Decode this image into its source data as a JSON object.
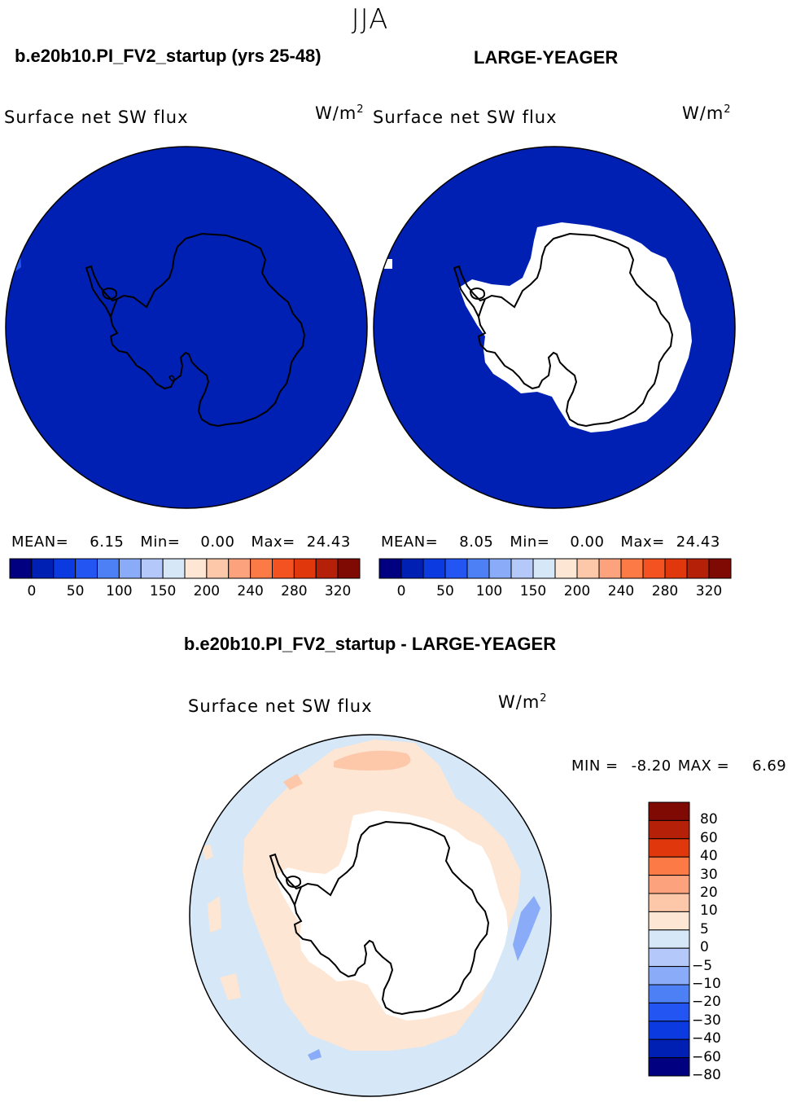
{
  "season": "JJA",
  "panels": [
    {
      "title": "b.e20b10.PI_FV2_startup (yrs 25-48)",
      "variable": "Surface net SW flux",
      "units": "W/m",
      "units_exponent": "2",
      "mean_label": "MEAN=",
      "mean": "6.15",
      "min_label": "Min=",
      "min": "0.00",
      "max_label": "Max=",
      "max": "24.43"
    },
    {
      "title": "LARGE-YEAGER",
      "variable": "Surface net SW flux",
      "units": "W/m",
      "units_exponent": "2",
      "mean_label": "MEAN=",
      "mean": "8.05",
      "min_label": "Min=",
      "min": "0.00",
      "max_label": "Max=",
      "max": "24.43"
    }
  ],
  "panel_colorbar": {
    "colors": [
      "#000080",
      "#0020b4",
      "#0a3ae0",
      "#2255f2",
      "#4d7ff5",
      "#8aacf8",
      "#b4c9f9",
      "#d6e7f7",
      "#fde6d4",
      "#fdc8aa",
      "#fca27d",
      "#fc7a45",
      "#f55222",
      "#e0380c",
      "#b52008",
      "#7f0a03"
    ],
    "ticks": [
      "0",
      "50",
      "100",
      "150",
      "200",
      "240",
      "280",
      "320"
    ]
  },
  "diff_panel": {
    "title": "b.e20b10.PI_FV2_startup - LARGE-YEAGER",
    "variable": "Surface net SW flux",
    "units": "W/m",
    "units_exponent": "2",
    "min_label": "MIN =",
    "min": "-8.20",
    "max_label": "MAX =",
    "max": "6.69",
    "colorbar": {
      "colors": [
        "#7f0a03",
        "#b52008",
        "#e0380c",
        "#fc7a45",
        "#fca27d",
        "#fdc8aa",
        "#fde6d4",
        "#d6e7f7",
        "#b4c9f9",
        "#8aacf8",
        "#4d7ff5",
        "#2255f2",
        "#0a3ae0",
        "#0020b4",
        "#000080"
      ],
      "ticks": [
        "80",
        "60",
        "40",
        "30",
        "20",
        "10",
        "5",
        "0",
        "−5",
        "−10",
        "−20",
        "−30",
        "−40",
        "−60",
        "−80"
      ]
    }
  },
  "map_colors": {
    "ocean_deep": "#0020b4",
    "sea_ice": "#ffffff",
    "diff_positive": "#fde6d4",
    "diff_positive_strong": "#fdc8aa",
    "diff_negative": "#d6e7f7",
    "diff_negative_strong": "#8aacf8"
  }
}
